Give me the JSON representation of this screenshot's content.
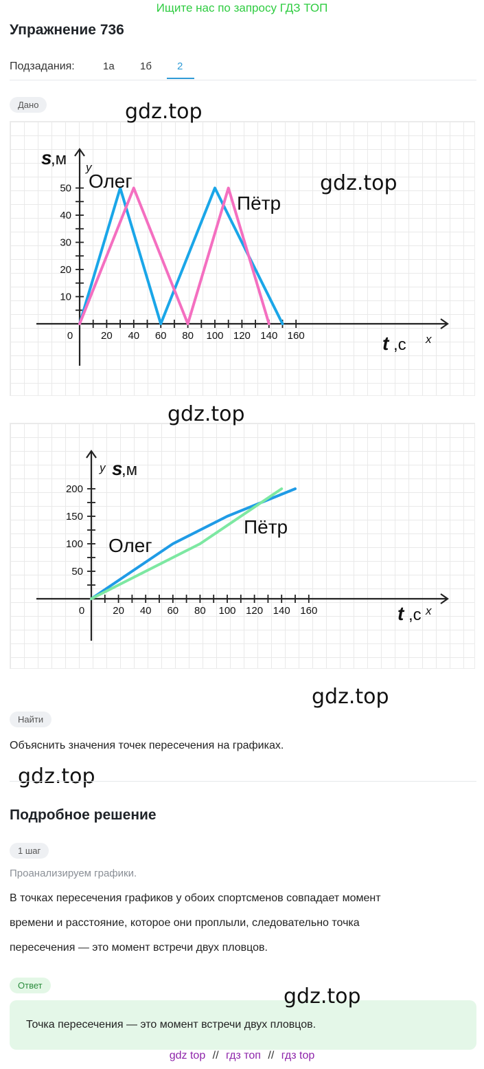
{
  "promo": "Ищите нас по запросу ГДЗ ТОП",
  "title": "Упражнение 736",
  "subtasks": {
    "label": "Подзадания:",
    "tabs": [
      "1а",
      "1б",
      "2"
    ],
    "active": "2"
  },
  "given_label": "Дано",
  "find_label": "Найти",
  "find_text": "Объяснить значения точек пересечения на графиках.",
  "solution_title": "Подробное решение",
  "step_label": "1 шаг",
  "step_hint": "Проанализируем графики.",
  "step_text_lines": [
    "В точках пересечения графиков у обоих спортсменов совпадает момент",
    "времени и расстояние, которое они проплыли, следовательно точка",
    "пересечения — это момент встречи двух пловцов."
  ],
  "answer_label": "Ответ",
  "answer_text": "Точка пересечения — это момент встречи двух пловцов.",
  "watermark": "gdz.top",
  "footer": {
    "items": [
      "gdz top",
      "гдз топ",
      "гдз top"
    ],
    "separator": "//"
  },
  "colors": {
    "oleg": "#1aa6e8",
    "petr1": "#f46fc0",
    "oleg2": "#1f9be6",
    "petr2": "#7de8a2",
    "promo": "#2ecc40"
  },
  "chart_data": [
    {
      "type": "line",
      "title": "",
      "xlabel": "t,с",
      "ylabel": "s,м",
      "x_axis_letter": "x",
      "y_axis_letter": "y",
      "x_ticks": [
        0,
        20,
        40,
        60,
        80,
        100,
        120,
        140,
        160
      ],
      "y_ticks": [
        10,
        20,
        30,
        40,
        50
      ],
      "xlim": [
        0,
        160
      ],
      "ylim": [
        0,
        50
      ],
      "grid": true,
      "series": [
        {
          "name": "Олег",
          "x": [
            0,
            30,
            60,
            100,
            150
          ],
          "y": [
            0,
            50,
            0,
            50,
            0
          ]
        },
        {
          "name": "Пётр",
          "x": [
            0,
            40,
            80,
            110,
            140
          ],
          "y": [
            0,
            50,
            0,
            50,
            0
          ]
        }
      ]
    },
    {
      "type": "line",
      "title": "",
      "xlabel": "t,с",
      "ylabel": "s,м",
      "x_axis_letter": "x",
      "y_axis_letter": "y",
      "x_ticks": [
        0,
        20,
        40,
        60,
        80,
        100,
        120,
        140,
        160
      ],
      "y_ticks": [
        50,
        100,
        150,
        200
      ],
      "xlim": [
        0,
        160
      ],
      "ylim": [
        0,
        200
      ],
      "grid": true,
      "series": [
        {
          "name": "Олег",
          "x": [
            0,
            60,
            100,
            150
          ],
          "y": [
            0,
            100,
            150,
            200
          ]
        },
        {
          "name": "Пётр",
          "x": [
            0,
            80,
            140
          ],
          "y": [
            0,
            100,
            200
          ]
        }
      ]
    }
  ]
}
